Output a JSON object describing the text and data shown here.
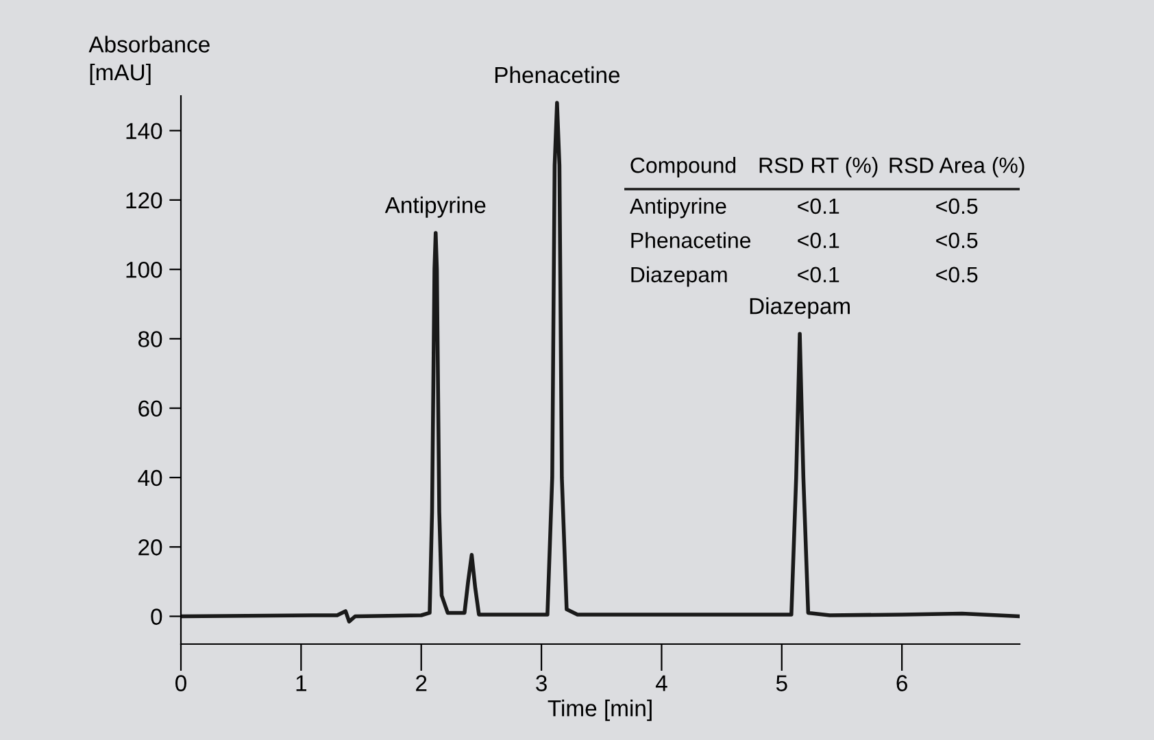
{
  "chart_data": {
    "type": "line",
    "xlabel": "Time [min]",
    "ylabel": "Absorbance\n[mAU]",
    "x": [
      0,
      1.1,
      1.3,
      1.37,
      1.4,
      1.45,
      2.0,
      2.07,
      2.09,
      2.11,
      2.12,
      2.13,
      2.15,
      2.17,
      2.22,
      2.36,
      2.39,
      2.42,
      2.45,
      2.48,
      3.05,
      3.09,
      3.11,
      3.13,
      3.15,
      3.17,
      3.21,
      3.3,
      5.08,
      5.12,
      5.15,
      5.18,
      5.22,
      5.4,
      6.0,
      6.5,
      6.98
    ],
    "series": [
      {
        "color": "#1a1a1a",
        "values": [
          0,
          0.3,
          0.3,
          1.5,
          -1.5,
          0,
          0.3,
          1,
          30,
          100,
          110.5,
          100,
          30,
          6,
          1,
          1,
          10,
          17.7,
          8,
          0.5,
          0.5,
          40,
          130,
          148,
          130,
          40,
          2,
          0.5,
          0.5,
          40,
          81.4,
          40,
          1,
          0.3,
          0.5,
          0.8,
          0
        ]
      }
    ],
    "xlim": [
      0,
      6.98
    ],
    "ylim": [
      -8,
      150
    ],
    "xticks": [
      0,
      1,
      2,
      3,
      4,
      5,
      6
    ],
    "yticks": [
      0,
      20,
      40,
      60,
      80,
      100,
      120,
      140
    ],
    "grid": false,
    "legend": false,
    "marker": "none",
    "line_style": "solid",
    "annotations": [
      {
        "text": "Antipyrine",
        "x": 2.12,
        "y": 110.5
      },
      {
        "text": "Phenacetine",
        "x": 3.13,
        "y": 148
      },
      {
        "text": "Diazepam",
        "x": 5.15,
        "y": 81.4
      },
      "Compound",
      "RSD RT (%)",
      "RSD Area (%)",
      "Antipyrine",
      "<0.1",
      "<0.5",
      "Phenacetine",
      "<0.1",
      "<0.5",
      "Diazepam",
      "<0.1",
      "<0.5"
    ]
  }
}
